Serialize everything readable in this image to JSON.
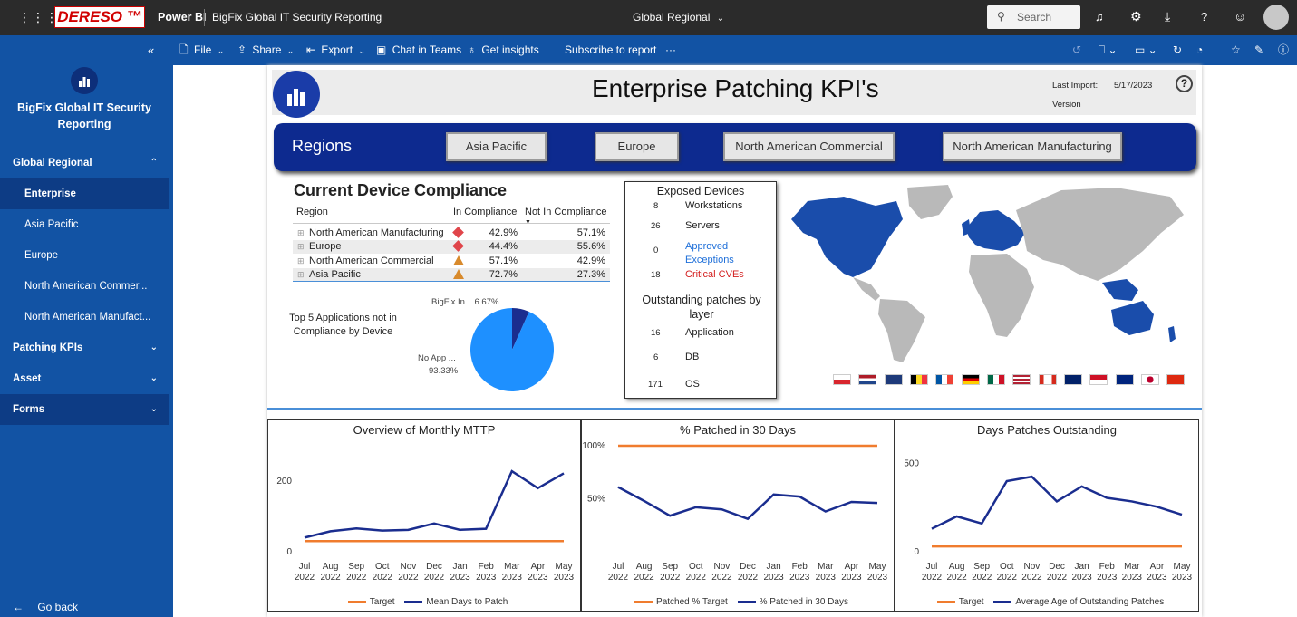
{
  "topbar": {
    "brand": "DERESO ™",
    "app": "Power BI",
    "report_title": "BigFix Global IT Security Reporting",
    "page_name": "Global Regional",
    "search_placeholder": "Search"
  },
  "toolbar": {
    "file": "File",
    "share": "Share",
    "export": "Export",
    "chat": "Chat in Teams",
    "insights": "Get insights",
    "subscribe": "Subscribe to report",
    "more": "···"
  },
  "sidebar": {
    "title": "BigFix Global IT Security Reporting",
    "items": [
      {
        "label": "Global Regional"
      },
      {
        "label": "Enterprise"
      },
      {
        "label": "Asia Pacific"
      },
      {
        "label": "Europe"
      },
      {
        "label": "North American Commer..."
      },
      {
        "label": "North American Manufact..."
      },
      {
        "label": "Patching KPIs"
      },
      {
        "label": "Asset"
      },
      {
        "label": "Forms"
      }
    ],
    "go_back": "Go back"
  },
  "report": {
    "title": "Enterprise Patching KPI's",
    "last_import_label": "Last Import:",
    "last_import_date": "5/17/2023",
    "version_label": "Version",
    "regions_label": "Regions",
    "region_buttons": [
      "Asia Pacific",
      "Europe",
      "North American Commercial",
      "North American Manufacturing"
    ]
  },
  "compliance": {
    "title": "Current Device Compliance",
    "col_region": "Region",
    "col_in": "In Compliance",
    "col_not": "Not In Compliance",
    "rows": [
      {
        "region": "North American Manufacturing",
        "in": "42.9%",
        "not": "57.1%",
        "status": "diamond-red"
      },
      {
        "region": "Europe",
        "in": "44.4%",
        "not": "55.6%",
        "status": "diamond-red"
      },
      {
        "region": "North American Commercial",
        "in": "57.1%",
        "not": "42.9%",
        "status": "triangle-amber"
      },
      {
        "region": "Asia Pacific",
        "in": "72.7%",
        "not": "27.3%",
        "status": "triangle-amber"
      }
    ]
  },
  "pie": {
    "title": "Top 5 Applications not in Compliance by Device",
    "label_small": "BigFix In... 6.67%",
    "label_big_1": "No App ...",
    "label_big_2": "93.33%",
    "slices": [
      {
        "name": "BigFix In...",
        "value": 6.67,
        "color": "#1a2d8f"
      },
      {
        "name": "No App ...",
        "value": 93.33,
        "color": "#1e90ff"
      }
    ]
  },
  "exposed": {
    "title": "Exposed Devices",
    "items": [
      {
        "count": "8",
        "label": "Workstations",
        "color": "#222"
      },
      {
        "count": "26",
        "label": "Servers",
        "color": "#222"
      },
      {
        "count": "0",
        "label": "Approved Exceptions",
        "color": "#1e6fd9"
      },
      {
        "count": "18",
        "label": "Critical CVEs",
        "color": "#d42020"
      }
    ],
    "patches_title": "Outstanding patches by layer",
    "patches": [
      {
        "count": "16",
        "label": "Application"
      },
      {
        "count": "6",
        "label": "DB"
      },
      {
        "count": "171",
        "label": "OS"
      }
    ]
  },
  "chart_data": [
    {
      "type": "line",
      "title": "Overview of Monthly MTTP",
      "x": [
        "Jul 2022",
        "Aug 2022",
        "Sep 2022",
        "Oct 2022",
        "Nov 2022",
        "Dec 2022",
        "Jan 2023",
        "Feb 2023",
        "Mar 2023",
        "Apr 2023",
        "May 2023"
      ],
      "yticks": [
        "0",
        "200"
      ],
      "ylim": [
        0,
        300
      ],
      "series": [
        {
          "name": "Target",
          "color": "#f07c2e",
          "values": [
            30,
            30,
            30,
            30,
            30,
            30,
            30,
            30,
            30,
            30,
            30
          ]
        },
        {
          "name": "Mean Days to Patch",
          "color": "#1a2d8f",
          "values": [
            40,
            58,
            66,
            60,
            62,
            80,
            62,
            65,
            228,
            180,
            222
          ]
        }
      ]
    },
    {
      "type": "line",
      "title": "% Patched in 30 Days",
      "x": [
        "Jul 2022",
        "Aug 2022",
        "Sep 2022",
        "Oct 2022",
        "Nov 2022",
        "Dec 2022",
        "Jan 2023",
        "Feb 2023",
        "Mar 2023",
        "Apr 2023",
        "May 2023"
      ],
      "yticks": [
        "50%",
        "100%"
      ],
      "ylim": [
        0,
        100
      ],
      "series": [
        {
          "name": "Patched % Target",
          "color": "#f07c2e",
          "values": [
            100,
            100,
            100,
            100,
            100,
            100,
            100,
            100,
            100,
            100,
            100
          ]
        },
        {
          "name": "% Patched in 30 Days",
          "color": "#1a2d8f",
          "values": [
            61,
            48,
            34,
            42,
            40,
            31,
            54,
            52,
            38,
            47,
            46
          ]
        }
      ]
    },
    {
      "type": "line",
      "title": "Days Patches Outstanding",
      "x": [
        "Jul 2022",
        "Aug 2022",
        "Sep 2022",
        "Oct 2022",
        "Nov 2022",
        "Dec 2022",
        "Jan 2023",
        "Feb 2023",
        "Mar 2023",
        "Apr 2023",
        "May 2023"
      ],
      "yticks": [
        "0",
        "500"
      ],
      "ylim": [
        0,
        600
      ],
      "series": [
        {
          "name": "Target",
          "color": "#f07c2e",
          "values": [
            30,
            30,
            30,
            30,
            30,
            30,
            30,
            30,
            30,
            30,
            30
          ]
        },
        {
          "name": "Average Age of Outstanding Patches",
          "color": "#1a2d8f",
          "values": [
            130,
            200,
            160,
            400,
            425,
            285,
            370,
            305,
            285,
            255,
            210
          ]
        }
      ]
    }
  ]
}
